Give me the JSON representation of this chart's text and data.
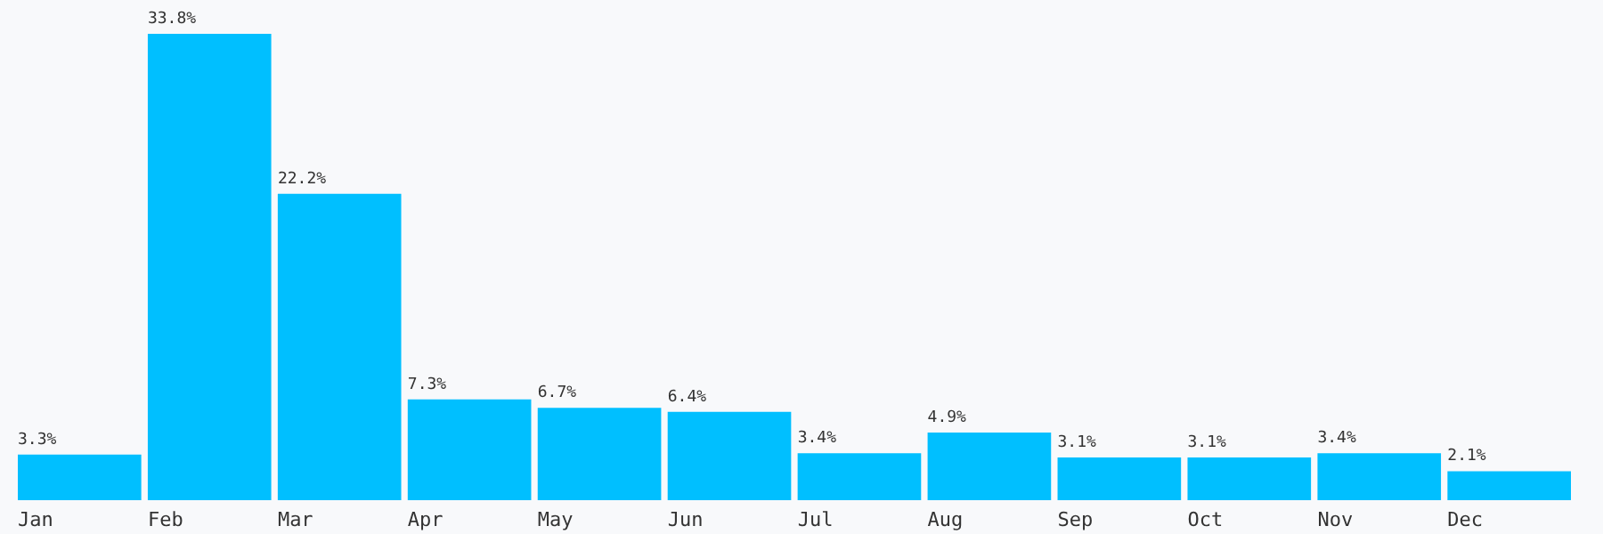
{
  "chart_data": {
    "type": "bar",
    "categories": [
      "Jan",
      "Feb",
      "Mar",
      "Apr",
      "May",
      "Jun",
      "Jul",
      "Aug",
      "Sep",
      "Oct",
      "Nov",
      "Dec"
    ],
    "values": [
      3.3,
      33.8,
      22.2,
      7.3,
      6.7,
      6.4,
      3.4,
      4.9,
      3.1,
      3.1,
      3.4,
      2.1
    ],
    "value_labels": [
      "3.3%",
      "33.8%",
      "22.2%",
      "7.3%",
      "6.7%",
      "6.4%",
      "3.4%",
      "4.9%",
      "3.1%",
      "3.1%",
      "3.4%",
      "2.1%"
    ],
    "color": "#00bfff",
    "grid": false
  }
}
